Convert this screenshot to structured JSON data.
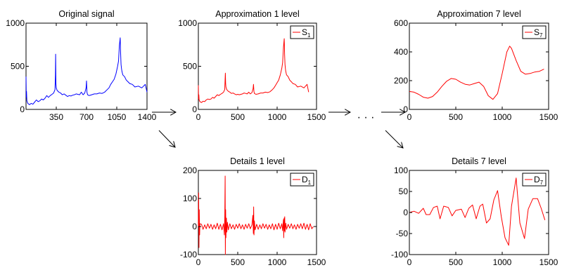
{
  "figure": {
    "ellipsis": "· · ·"
  },
  "chart_data": [
    {
      "id": "original",
      "type": "line",
      "title": "Original signal",
      "xlabel": "",
      "ylabel": "",
      "xlim": [
        0,
        1400
      ],
      "ylim": [
        0,
        1000
      ],
      "xticks": [
        350,
        700,
        1050,
        1400
      ],
      "yticks": [
        0,
        500,
        1000
      ],
      "color": "#0000ff",
      "legend": null,
      "series": [
        {
          "x": [
            0,
            3,
            6,
            10,
            20,
            40,
            60,
            80,
            100,
            120,
            140,
            160,
            180,
            200,
            220,
            240,
            260,
            280,
            300,
            320,
            335,
            340,
            343,
            346,
            350,
            360,
            380,
            400,
            420,
            440,
            460,
            480,
            500,
            520,
            540,
            560,
            580,
            600,
            620,
            640,
            660,
            680,
            695,
            700,
            705,
            712,
            730,
            760,
            790,
            820,
            850,
            880,
            910,
            940,
            960,
            980,
            1000,
            1020,
            1040,
            1060,
            1070,
            1080,
            1090,
            1095,
            1100,
            1105,
            1110,
            1120,
            1140,
            1160,
            1180,
            1200,
            1230,
            1260,
            1300,
            1340,
            1380,
            1400
          ],
          "y": [
            380,
            140,
            210,
            100,
            70,
            55,
            70,
            60,
            85,
            110,
            90,
            100,
            120,
            110,
            130,
            160,
            140,
            160,
            175,
            190,
            230,
            400,
            640,
            300,
            250,
            220,
            200,
            190,
            170,
            180,
            165,
            150,
            160,
            155,
            165,
            170,
            180,
            175,
            170,
            200,
            170,
            190,
            250,
            330,
            200,
            170,
            160,
            170,
            180,
            180,
            190,
            185,
            200,
            230,
            250,
            290,
            320,
            350,
            410,
            500,
            560,
            740,
            830,
            650,
            520,
            470,
            440,
            400,
            380,
            340,
            320,
            300,
            290,
            260,
            270,
            250,
            290,
            200
          ]
        }
      ]
    },
    {
      "id": "approx1",
      "type": "line",
      "title": "Approximation 1 level",
      "xlabel": "",
      "ylabel": "",
      "xlim": [
        0,
        1500
      ],
      "ylim": [
        0,
        1000
      ],
      "xticks": [
        0,
        500,
        1000,
        1500
      ],
      "yticks": [
        0,
        500,
        1000
      ],
      "color": "#ff0000",
      "legend": {
        "label": "S",
        "sub": "1",
        "position": "top-right"
      },
      "series": [
        {
          "x": [
            0,
            3,
            6,
            10,
            20,
            40,
            60,
            80,
            100,
            120,
            140,
            160,
            180,
            200,
            220,
            240,
            260,
            280,
            300,
            320,
            335,
            340,
            343,
            346,
            350,
            360,
            380,
            400,
            420,
            440,
            460,
            480,
            500,
            520,
            540,
            560,
            580,
            600,
            620,
            640,
            660,
            680,
            695,
            700,
            705,
            712,
            730,
            760,
            790,
            820,
            850,
            880,
            910,
            940,
            960,
            980,
            1000,
            1020,
            1040,
            1060,
            1070,
            1080,
            1090,
            1095,
            1100,
            1105,
            1110,
            1120,
            1140,
            1160,
            1180,
            1200,
            1230,
            1260,
            1300,
            1340,
            1380,
            1400
          ],
          "y": [
            280,
            120,
            170,
            110,
            90,
            80,
            95,
            90,
            110,
            120,
            115,
            120,
            140,
            130,
            150,
            170,
            160,
            175,
            185,
            200,
            230,
            360,
            420,
            300,
            260,
            230,
            210,
            200,
            185,
            190,
            180,
            170,
            175,
            170,
            175,
            180,
            190,
            185,
            180,
            200,
            180,
            195,
            240,
            290,
            210,
            185,
            175,
            180,
            190,
            190,
            200,
            195,
            205,
            230,
            250,
            280,
            310,
            340,
            400,
            480,
            540,
            720,
            820,
            640,
            520,
            470,
            440,
            400,
            380,
            340,
            320,
            300,
            290,
            260,
            270,
            250,
            290,
            200
          ]
        }
      ]
    },
    {
      "id": "approx7",
      "type": "line",
      "title": "Approximation 7 level",
      "xlabel": "",
      "ylabel": "",
      "xlim": [
        0,
        1500
      ],
      "ylim": [
        0,
        600
      ],
      "xticks": [
        0,
        500,
        1000,
        1500
      ],
      "yticks": [
        0,
        200,
        400,
        600
      ],
      "color": "#ff0000",
      "legend": {
        "label": "S",
        "sub": "7",
        "position": "top-right"
      },
      "series": [
        {
          "x": [
            0,
            50,
            100,
            150,
            200,
            250,
            300,
            350,
            400,
            450,
            500,
            550,
            600,
            650,
            700,
            750,
            800,
            850,
            900,
            950,
            1000,
            1050,
            1080,
            1100,
            1150,
            1200,
            1250,
            1300,
            1350,
            1400,
            1450
          ],
          "y": [
            125,
            120,
            105,
            85,
            78,
            90,
            120,
            160,
            195,
            215,
            210,
            190,
            175,
            170,
            180,
            190,
            160,
            95,
            70,
            110,
            250,
            400,
            440,
            425,
            340,
            265,
            245,
            250,
            260,
            265,
            280
          ]
        }
      ]
    },
    {
      "id": "detail1",
      "type": "line",
      "title": "Details 1 level",
      "xlabel": "",
      "ylabel": "",
      "xlim": [
        0,
        1500
      ],
      "ylim": [
        -100,
        200
      ],
      "xticks": [
        0,
        500,
        1000,
        1500
      ],
      "yticks": [
        -100,
        0,
        100,
        200
      ],
      "color": "#ff0000",
      "legend": {
        "label": "D",
        "sub": "1",
        "position": "top-right"
      },
      "series": [
        {
          "x": [
            0,
            4,
            8,
            12,
            16,
            20,
            40,
            60,
            80,
            100,
            120,
            140,
            160,
            180,
            200,
            220,
            240,
            260,
            280,
            300,
            320,
            330,
            336,
            340,
            343,
            346,
            350,
            356,
            362,
            370,
            380,
            400,
            420,
            440,
            460,
            480,
            500,
            520,
            540,
            560,
            580,
            600,
            620,
            640,
            660,
            680,
            692,
            698,
            702,
            706,
            712,
            720,
            740,
            760,
            780,
            800,
            820,
            840,
            860,
            880,
            900,
            920,
            940,
            960,
            980,
            1000,
            1020,
            1040,
            1060,
            1070,
            1080,
            1084,
            1088,
            1092,
            1096,
            1100,
            1110,
            1120,
            1140,
            1160,
            1180,
            1200,
            1220,
            1240,
            1260,
            1280,
            1300,
            1320,
            1340,
            1360,
            1380,
            1400,
            1420,
            1440,
            1460
          ],
          "y": [
            0,
            120,
            -75,
            60,
            -30,
            10,
            8,
            -10,
            6,
            -8,
            10,
            -6,
            8,
            -10,
            6,
            -8,
            12,
            -10,
            8,
            -12,
            10,
            -30,
            40,
            180,
            -100,
            60,
            -40,
            30,
            -20,
            15,
            -12,
            10,
            -8,
            6,
            -10,
            8,
            -6,
            10,
            -8,
            6,
            -10,
            8,
            -6,
            10,
            -8,
            6,
            40,
            -25,
            70,
            -30,
            20,
            -12,
            8,
            -10,
            6,
            -8,
            10,
            -6,
            8,
            -10,
            6,
            -8,
            10,
            -12,
            8,
            -10,
            12,
            -8,
            10,
            -15,
            25,
            -40,
            30,
            -15,
            35,
            -20,
            12,
            -10,
            8,
            -6,
            10,
            -8,
            6,
            -10,
            8,
            -6,
            10,
            -8,
            12,
            -10,
            8,
            -12,
            10,
            -8,
            0
          ]
        }
      ]
    },
    {
      "id": "detail7",
      "type": "line",
      "title": "Details 7 level",
      "xlabel": "",
      "ylabel": "",
      "xlim": [
        0,
        1500
      ],
      "ylim": [
        -100,
        100
      ],
      "xticks": [
        0,
        500,
        1000,
        1500
      ],
      "yticks": [
        -100,
        -50,
        0,
        50,
        100
      ],
      "color": "#ff0000",
      "legend": {
        "label": "D",
        "sub": "7",
        "position": "top-right"
      },
      "series": [
        {
          "x": [
            0,
            50,
            100,
            150,
            180,
            220,
            260,
            300,
            330,
            370,
            420,
            460,
            500,
            560,
            600,
            640,
            680,
            720,
            760,
            790,
            830,
            870,
            910,
            950,
            990,
            1030,
            1070,
            1100,
            1150,
            1190,
            1240,
            1280,
            1330,
            1380,
            1420,
            1460
          ],
          "y": [
            0,
            3,
            -2,
            10,
            -5,
            -5,
            12,
            15,
            -15,
            15,
            12,
            -8,
            5,
            8,
            -12,
            10,
            18,
            -15,
            15,
            20,
            -25,
            -15,
            30,
            52,
            -10,
            -60,
            -78,
            15,
            82,
            -25,
            -62,
            8,
            33,
            33,
            10,
            -18
          ]
        }
      ]
    }
  ]
}
